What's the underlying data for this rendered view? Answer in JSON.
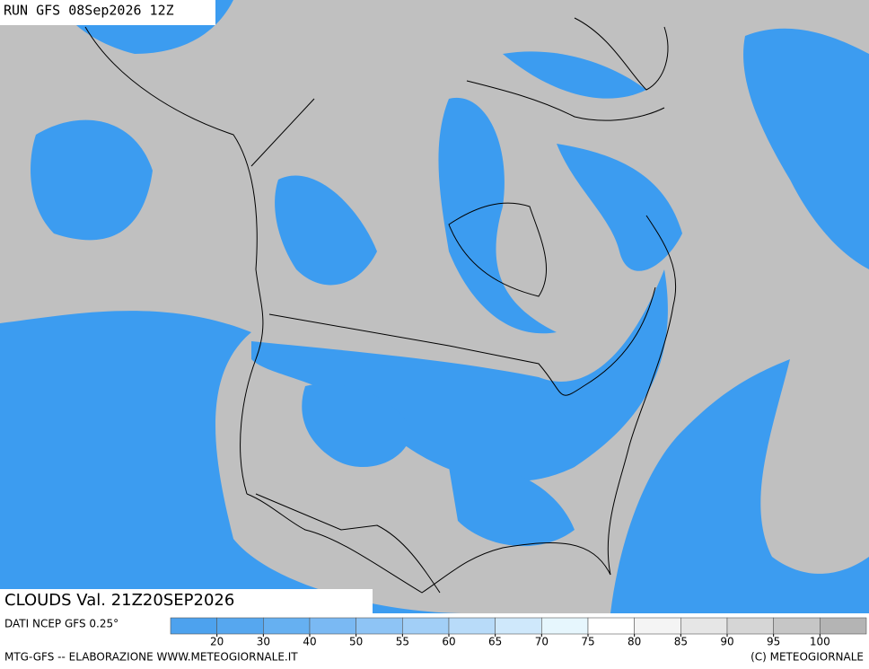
{
  "header": {
    "run": "RUN GFS 08Sep2026 12Z"
  },
  "map": {
    "label": "CLOUDS Val. 21Z20SEP2026"
  },
  "legend": {
    "source": "DATI NCEP GFS 0.25°",
    "ticks": [
      20,
      30,
      40,
      50,
      55,
      60,
      65,
      70,
      75,
      80,
      85,
      90,
      95,
      100
    ],
    "colors": [
      "#4da2ee",
      "#56a7ef",
      "#66b0f1",
      "#7ab9f3",
      "#8ec4f5",
      "#a2cff7",
      "#b8dbf9",
      "#cfe8fb",
      "#e6f6fd",
      "#ffffff",
      "#f4f4f4",
      "#e6e6e6",
      "#d6d6d6",
      "#c6c6c6",
      "#b4b4b4"
    ]
  },
  "footer": {
    "left": "MTG-GFS -- ELABORAZIONE WWW.METEOGIORNALE.IT",
    "right": "(C) METEOGIORNALE"
  }
}
